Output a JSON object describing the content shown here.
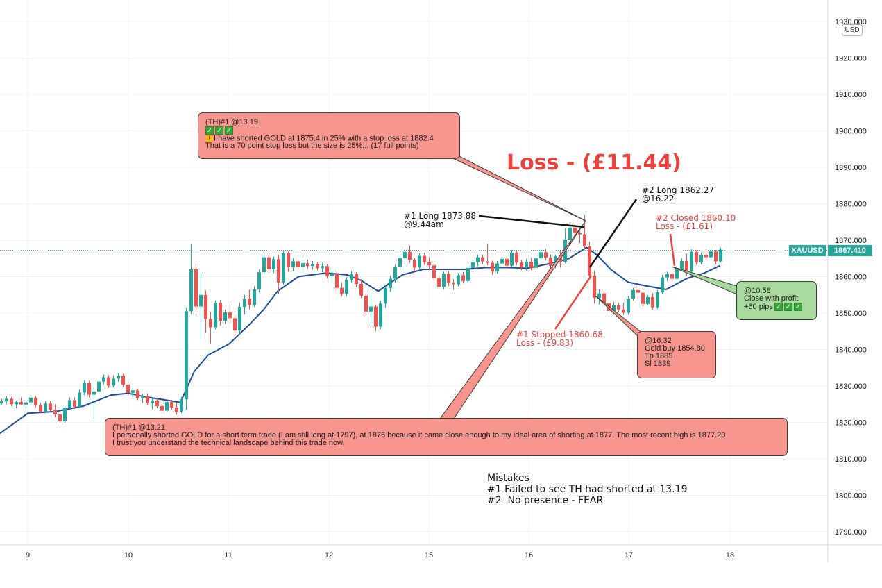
{
  "chart_data": {
    "type": "candlestick",
    "symbol": "XAUUSD",
    "currency": "USD",
    "last_price": "1867.410",
    "ylim": [
      1785,
      1931
    ],
    "y_ticks": [
      "1930.000",
      "1920.000",
      "1910.000",
      "1900.000",
      "1890.000",
      "1880.000",
      "1870.000",
      "1860.000",
      "1850.000",
      "1840.000",
      "1830.000",
      "1820.000",
      "1810.000",
      "1800.000",
      "1790.000"
    ],
    "x_ticks": [
      "9",
      "10",
      "11",
      "12",
      "15",
      "16",
      "17",
      "18"
    ],
    "colors": {
      "up": "#26a69a",
      "down": "#ef5350",
      "ma": "#1c4a9c",
      "grid": "#f0f3fa",
      "last_price_line": "#26a69a"
    },
    "moving_average": [
      [
        0,
        1817
      ],
      [
        40,
        1822.5
      ],
      [
        80,
        1823
      ],
      [
        120,
        1824.5
      ],
      [
        160,
        1827.5
      ],
      [
        185,
        1828
      ],
      [
        210,
        1827
      ],
      [
        260,
        1825.5
      ],
      [
        280,
        1834
      ],
      [
        300,
        1838.5
      ],
      [
        330,
        1841.5
      ],
      [
        360,
        1847
      ],
      [
        380,
        1851
      ],
      [
        400,
        1856
      ],
      [
        430,
        1860
      ],
      [
        470,
        1861
      ],
      [
        500,
        1860.5
      ],
      [
        520,
        1859
      ],
      [
        545,
        1856
      ],
      [
        560,
        1858
      ],
      [
        580,
        1860.5
      ],
      [
        610,
        1862
      ],
      [
        640,
        1862
      ],
      [
        670,
        1862
      ],
      [
        700,
        1862.5
      ],
      [
        730,
        1862.5
      ],
      [
        760,
        1862.3
      ],
      [
        790,
        1863.5
      ],
      [
        820,
        1865
      ],
      [
        845,
        1868
      ],
      [
        860,
        1866
      ],
      [
        880,
        1862
      ],
      [
        905,
        1858.5
      ],
      [
        930,
        1857.5
      ],
      [
        960,
        1856.5
      ],
      [
        990,
        1859.5
      ],
      [
        1015,
        1861
      ],
      [
        1037,
        1863
      ]
    ],
    "candles": [
      [
        0,
        1825.2,
        1826.4,
        1824.8,
        1825.8
      ],
      [
        7,
        1825.8,
        1827.2,
        1825.0,
        1826.5
      ],
      [
        14,
        1826.5,
        1827.0,
        1824.5,
        1825.0
      ],
      [
        21,
        1825.0,
        1826.0,
        1823.9,
        1825.6
      ],
      [
        28,
        1825.6,
        1826.8,
        1824.7,
        1824.9
      ],
      [
        35,
        1824.9,
        1825.8,
        1823.8,
        1825.5
      ],
      [
        42,
        1825.5,
        1827.5,
        1825.0,
        1826.8
      ],
      [
        49,
        1826.8,
        1827.3,
        1824.2,
        1824.7
      ],
      [
        56,
        1824.7,
        1825.4,
        1822.5,
        1823.0
      ],
      [
        63,
        1823.0,
        1825.8,
        1822.6,
        1825.2
      ],
      [
        70,
        1825.2,
        1825.9,
        1823.1,
        1823.5
      ],
      [
        77,
        1823.5,
        1825.0,
        1821.5,
        1822.2
      ],
      [
        84,
        1822.2,
        1823.0,
        1819.8,
        1820.3
      ],
      [
        91,
        1820.3,
        1824.6,
        1819.9,
        1824.0
      ],
      [
        98,
        1824.0,
        1826.8,
        1823.4,
        1826.1
      ],
      [
        105,
        1826.1,
        1826.9,
        1823.7,
        1824.3
      ],
      [
        112,
        1824.3,
        1829.0,
        1823.9,
        1828.2
      ],
      [
        119,
        1828.2,
        1831.5,
        1827.5,
        1830.8
      ],
      [
        126,
        1830.8,
        1831.4,
        1826.8,
        1827.6
      ],
      [
        133,
        1827.6,
        1829.5,
        1821.0,
        1828.5
      ],
      [
        140,
        1828.5,
        1831.8,
        1828.0,
        1831.2
      ],
      [
        147,
        1831.2,
        1833.2,
        1830.5,
        1832.4
      ],
      [
        154,
        1832.4,
        1833.0,
        1829.4,
        1830.1
      ],
      [
        161,
        1830.1,
        1832.9,
        1829.6,
        1832.0
      ],
      [
        168,
        1832.0,
        1833.5,
        1831.2,
        1832.8
      ],
      [
        175,
        1832.8,
        1833.3,
        1829.8,
        1830.4
      ],
      [
        182,
        1830.4,
        1831.2,
        1827.3,
        1828.1
      ],
      [
        189,
        1828.1,
        1829.5,
        1827.0,
        1828.8
      ],
      [
        196,
        1828.8,
        1829.3,
        1826.1,
        1826.7
      ],
      [
        203,
        1826.7,
        1827.8,
        1825.3,
        1827.2
      ],
      [
        210,
        1827.2,
        1827.9,
        1824.8,
        1825.4
      ],
      [
        217,
        1825.4,
        1826.6,
        1823.6,
        1826.0
      ],
      [
        224,
        1826.0,
        1826.8,
        1823.9,
        1824.5
      ],
      [
        231,
        1824.5,
        1825.1,
        1822.3,
        1823.2
      ],
      [
        238,
        1823.2,
        1826.0,
        1822.8,
        1825.6
      ],
      [
        245,
        1825.6,
        1826.2,
        1823.5,
        1824.1
      ],
      [
        252,
        1824.1,
        1825.5,
        1822.1,
        1822.9
      ],
      [
        259,
        1822.9,
        1827.0,
        1822.5,
        1826.4
      ],
      [
        266,
        1826.4,
        1851.5,
        1823.4,
        1850.5
      ],
      [
        273,
        1850.5,
        1869.0,
        1849.7,
        1862.0
      ],
      [
        280,
        1862.0,
        1863.5,
        1850.2,
        1851.8
      ],
      [
        287,
        1851.8,
        1861.0,
        1843.0,
        1855.0
      ],
      [
        294,
        1855.0,
        1856.2,
        1844.6,
        1848.4
      ],
      [
        301,
        1848.4,
        1850.3,
        1841.5,
        1846.1
      ],
      [
        308,
        1846.1,
        1853.5,
        1845.5,
        1852.8
      ],
      [
        315,
        1852.8,
        1853.6,
        1846.6,
        1847.9
      ],
      [
        322,
        1847.9,
        1850.9,
        1847.0,
        1850.2
      ],
      [
        329,
        1850.2,
        1852.5,
        1847.4,
        1848.6
      ],
      [
        336,
        1848.6,
        1849.6,
        1843.4,
        1845.2
      ],
      [
        343,
        1845.2,
        1852.8,
        1844.1,
        1851.7
      ],
      [
        350,
        1851.7,
        1855.0,
        1849.6,
        1854.0
      ],
      [
        357,
        1854.0,
        1856.4,
        1851.0,
        1852.2
      ],
      [
        364,
        1852.2,
        1857.3,
        1851.8,
        1856.5
      ],
      [
        371,
        1856.5,
        1862.0,
        1855.7,
        1861.2
      ],
      [
        378,
        1861.2,
        1866.1,
        1860.6,
        1865.3
      ],
      [
        385,
        1865.3,
        1866.0,
        1861.1,
        1862.0
      ],
      [
        392,
        1862.0,
        1865.6,
        1861.0,
        1864.8
      ],
      [
        399,
        1864.8,
        1866.1,
        1855.1,
        1858.4
      ],
      [
        406,
        1858.4,
        1867.0,
        1857.8,
        1866.4
      ],
      [
        413,
        1866.4,
        1866.9,
        1861.3,
        1862.6
      ],
      [
        420,
        1862.6,
        1865.1,
        1861.5,
        1864.2
      ],
      [
        427,
        1864.2,
        1864.9,
        1861.9,
        1862.7
      ],
      [
        434,
        1862.7,
        1864.5,
        1861.2,
        1863.7
      ],
      [
        441,
        1863.7,
        1864.6,
        1862.1,
        1862.9
      ],
      [
        448,
        1862.9,
        1864.3,
        1861.9,
        1863.4
      ],
      [
        455,
        1863.4,
        1864.0,
        1861.7,
        1862.3
      ],
      [
        462,
        1862.3,
        1863.8,
        1861.2,
        1862.9
      ],
      [
        469,
        1862.9,
        1863.4,
        1859.5,
        1860.2
      ],
      [
        476,
        1860.2,
        1861.5,
        1858.2,
        1860.8
      ],
      [
        483,
        1860.8,
        1861.7,
        1856.1,
        1856.9
      ],
      [
        490,
        1856.9,
        1858.4,
        1854.6,
        1855.3
      ],
      [
        497,
        1855.3,
        1859.9,
        1854.6,
        1859.1
      ],
      [
        504,
        1859.1,
        1861.5,
        1858.2,
        1860.7
      ],
      [
        511,
        1860.7,
        1861.2,
        1857.1,
        1858.0
      ],
      [
        518,
        1858.0,
        1859.3,
        1854.2,
        1854.8
      ],
      [
        525,
        1854.8,
        1855.3,
        1849.2,
        1850.4
      ],
      [
        532,
        1850.4,
        1855.6,
        1847.1,
        1851.8
      ],
      [
        539,
        1851.8,
        1852.2,
        1845.0,
        1846.3
      ],
      [
        546,
        1846.3,
        1853.4,
        1845.7,
        1852.6
      ],
      [
        553,
        1852.6,
        1857.4,
        1851.5,
        1856.9
      ],
      [
        560,
        1856.9,
        1860.3,
        1855.8,
        1859.4
      ],
      [
        567,
        1859.4,
        1863.3,
        1858.4,
        1862.7
      ],
      [
        574,
        1862.7,
        1866.1,
        1861.7,
        1865.1
      ],
      [
        581,
        1865.1,
        1867.5,
        1863.3,
        1866.8
      ],
      [
        588,
        1866.8,
        1868.6,
        1863.8,
        1864.6
      ],
      [
        595,
        1864.6,
        1865.1,
        1861.7,
        1862.5
      ],
      [
        602,
        1862.5,
        1866.4,
        1862.1,
        1865.7
      ],
      [
        609,
        1865.7,
        1866.5,
        1863.2,
        1864.0
      ],
      [
        616,
        1864.0,
        1865.4,
        1861.9,
        1863.1
      ],
      [
        623,
        1863.1,
        1863.8,
        1858.9,
        1859.6
      ],
      [
        630,
        1859.6,
        1860.5,
        1856.7,
        1857.2
      ],
      [
        637,
        1857.2,
        1861.4,
        1856.5,
        1860.8
      ],
      [
        644,
        1860.8,
        1861.5,
        1857.4,
        1858.3
      ],
      [
        651,
        1858.3,
        1859.3,
        1856.4,
        1857.9
      ],
      [
        658,
        1857.9,
        1861.0,
        1857.3,
        1860.4
      ],
      [
        665,
        1860.4,
        1861.3,
        1858.1,
        1858.8
      ],
      [
        672,
        1858.8,
        1863.1,
        1858.4,
        1862.4
      ],
      [
        679,
        1862.4,
        1864.7,
        1861.7,
        1864.0
      ],
      [
        686,
        1864.0,
        1866.1,
        1862.9,
        1865.3
      ],
      [
        693,
        1865.3,
        1866.0,
        1863.4,
        1864.2
      ],
      [
        700,
        1864.2,
        1869.0,
        1863.1,
        1863.8
      ],
      [
        707,
        1863.8,
        1864.4,
        1860.5,
        1861.4
      ],
      [
        714,
        1861.4,
        1864.3,
        1860.9,
        1863.6
      ],
      [
        721,
        1863.6,
        1865.5,
        1862.5,
        1864.9
      ],
      [
        728,
        1864.9,
        1865.7,
        1862.4,
        1863.0
      ],
      [
        735,
        1863.0,
        1867.4,
        1862.5,
        1866.6
      ],
      [
        742,
        1866.6,
        1867.3,
        1863.2,
        1863.9
      ],
      [
        749,
        1863.9,
        1864.6,
        1861.7,
        1862.5
      ],
      [
        756,
        1862.5,
        1864.8,
        1861.7,
        1864.1
      ],
      [
        763,
        1864.1,
        1865.2,
        1861.8,
        1862.4
      ],
      [
        770,
        1862.4,
        1865.8,
        1861.9,
        1865.1
      ],
      [
        777,
        1865.1,
        1867.4,
        1864.3,
        1866.7
      ],
      [
        784,
        1866.7,
        1867.6,
        1864.4,
        1865.2
      ],
      [
        791,
        1865.2,
        1866.1,
        1862.3,
        1863.0
      ],
      [
        798,
        1863.0,
        1866.0,
        1862.3,
        1865.6
      ],
      [
        805,
        1865.6,
        1867.1,
        1862.6,
        1864.1
      ],
      [
        812,
        1864.1,
        1873.3,
        1863.7,
        1870.2
      ],
      [
        819,
        1870.2,
        1874.2,
        1869.5,
        1873.5
      ],
      [
        826,
        1873.5,
        1874.6,
        1871.0,
        1872.0
      ],
      [
        833,
        1872.0,
        1873.2,
        1869.2,
        1871.6
      ],
      [
        840,
        1871.6,
        1876.9,
        1867.4,
        1868.3
      ],
      [
        847,
        1868.3,
        1869.6,
        1859.2,
        1860.3
      ],
      [
        854,
        1860.3,
        1861.7,
        1852.6,
        1854.2
      ],
      [
        861,
        1854.2,
        1856.5,
        1852.4,
        1855.4
      ],
      [
        868,
        1855.4,
        1856.1,
        1851.6,
        1852.7
      ],
      [
        875,
        1852.7,
        1853.4,
        1849.9,
        1850.6
      ],
      [
        882,
        1850.6,
        1853.1,
        1849.6,
        1852.1
      ],
      [
        889,
        1852.1,
        1852.8,
        1850.2,
        1851.0
      ],
      [
        896,
        1851.0,
        1852.9,
        1849.5,
        1850.1
      ],
      [
        903,
        1850.1,
        1854.6,
        1849.6,
        1854.0
      ],
      [
        910,
        1854.0,
        1856.9,
        1853.4,
        1856.3
      ],
      [
        917,
        1856.3,
        1857.3,
        1853.6,
        1855.6
      ],
      [
        924,
        1855.6,
        1857.0,
        1851.9,
        1852.5
      ],
      [
        931,
        1852.5,
        1854.9,
        1852.1,
        1854.4
      ],
      [
        938,
        1854.4,
        1855.4,
        1850.9,
        1851.6
      ],
      [
        945,
        1851.6,
        1856.4,
        1851.2,
        1855.7
      ],
      [
        952,
        1855.7,
        1860.5,
        1855.2,
        1859.8
      ],
      [
        959,
        1859.8,
        1861.4,
        1858.8,
        1860.7
      ],
      [
        966,
        1860.7,
        1861.2,
        1858.7,
        1859.4
      ],
      [
        973,
        1859.4,
        1863.0,
        1858.9,
        1862.1
      ],
      [
        980,
        1862.1,
        1865.0,
        1861.7,
        1864.3
      ],
      [
        987,
        1864.3,
        1866.3,
        1860.2,
        1861.4
      ],
      [
        994,
        1861.4,
        1867.5,
        1860.9,
        1866.8
      ],
      [
        1001,
        1866.8,
        1867.2,
        1863.2,
        1863.9
      ],
      [
        1008,
        1863.9,
        1866.6,
        1863.3,
        1866.0
      ],
      [
        1015,
        1866.0,
        1867.5,
        1864.5,
        1865.3
      ],
      [
        1022,
        1865.3,
        1867.8,
        1864.5,
        1866.9
      ],
      [
        1029,
        1866.9,
        1867.3,
        1863.4,
        1864.2
      ],
      [
        1036,
        1864.2,
        1867.9,
        1863.8,
        1867.4
      ]
    ]
  },
  "annotations": {
    "callout_th_1319": {
      "title": "(TH)#1 @13.19",
      "line1": "I have shorted GOLD at 1875.4 in 25% with a stop loss at 1882.4",
      "line2": "That is a 70 point stop loss but the size is 25%... (17 full points)"
    },
    "callout_th_1321": {
      "title": "(TH)#1 @13.21",
      "line1": "I personally shorted GOLD for a short term trade (I am still long at 1797), at 1876 because it came close enough to my ideal area of shorting at 1877. The most recent high is 1877.20",
      "line2": "I trust you understand the technical landscape behind this trade now."
    },
    "callout_1632": {
      "line1": "@16.32",
      "line2": "Gold buy 1854.80",
      "line3": "Tp 1885",
      "line4": "Sl 1839"
    },
    "callout_1058": {
      "line1": "@10.58",
      "line2": "Close with profit",
      "line3": "+60 pips"
    },
    "loss_total": "Loss - (£11.44)",
    "long1": {
      "line1": "#1 Long 1873.88",
      "line2": "@9.44am"
    },
    "long2": {
      "line1": "#2 Long 1862.27",
      "line2": "@16.22"
    },
    "closed2": {
      "line1": "#2 Closed 1860.10",
      "line2": "Loss - (£1.61)"
    },
    "stopped1": {
      "line1": "#1 Stopped 1860.68",
      "line2": "Loss - (£9.83)"
    },
    "mistakes": {
      "title": "Mistakes",
      "item1": "#1 Failed to see TH had shorted at 13.19",
      "item2": "#2  No presence - FEAR"
    }
  },
  "icons": {
    "check": "check-box-icon",
    "warning": "warning-icon"
  }
}
